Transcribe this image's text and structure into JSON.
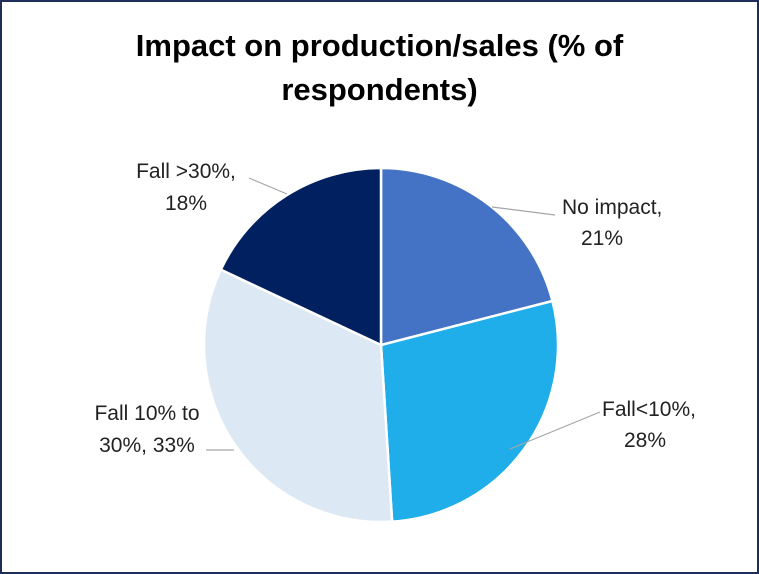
{
  "chart_data": {
    "type": "pie",
    "title_line1": "Impact on production/sales (% of",
    "title_line2": "respondents)",
    "start": "top",
    "direction": "clockwise",
    "slices": [
      {
        "label_line1": "No impact,",
        "label_line2": "21%",
        "value": 21,
        "color": "#4472C4"
      },
      {
        "label_line1": "Fall<10%,",
        "label_line2": "28%",
        "value": 28,
        "color": "#1FAEE9"
      },
      {
        "label_line1": "Fall 10% to",
        "label_line2": "30%, 33%",
        "value": 33,
        "color": "#DDE8F5"
      },
      {
        "label_line1": "Fall >30%,",
        "label_line2": "18%",
        "value": 18,
        "color": "#002060"
      }
    ]
  }
}
